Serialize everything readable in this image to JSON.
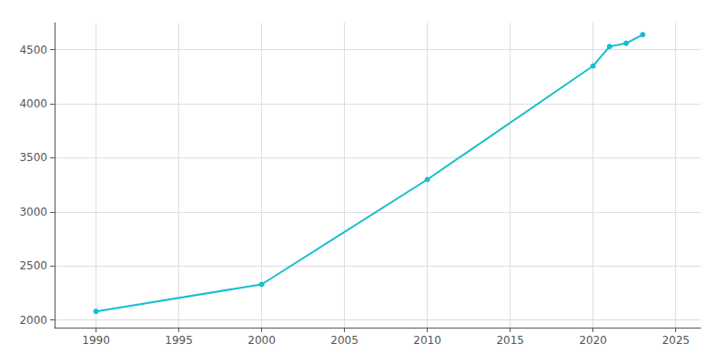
{
  "chart_data": {
    "type": "line",
    "x": [
      1990,
      2000,
      2010,
      2020,
      2021,
      2022,
      2023
    ],
    "values": [
      2080,
      2330,
      3300,
      4350,
      4530,
      4560,
      4640
    ],
    "color": "#17becf",
    "marker": "circle",
    "xlim": [
      1987.5,
      2026.5
    ],
    "xticks": [
      1990,
      1995,
      2000,
      2005,
      2010,
      2015,
      2020,
      2025
    ],
    "ylim": [
      1930,
      4750
    ],
    "yticks": [
      2000,
      2500,
      3000,
      3500,
      4000,
      4500
    ],
    "grid": true
  }
}
